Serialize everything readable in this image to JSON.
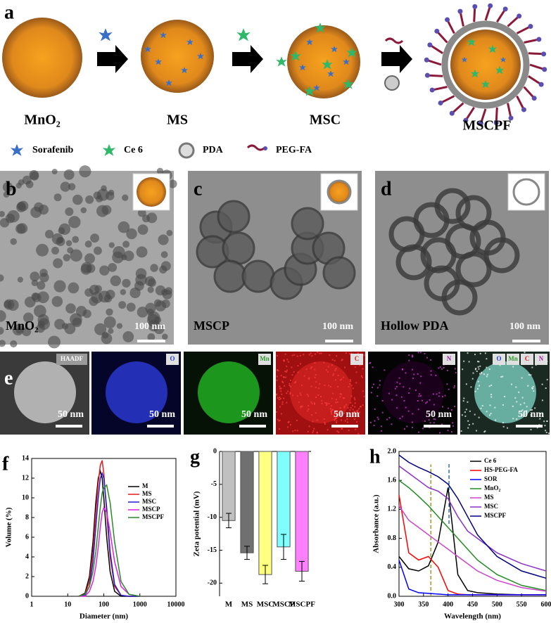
{
  "panels": {
    "a": {
      "label": "a",
      "stages": [
        "MnO₂",
        "MS",
        "MSC",
        "MSCPF"
      ],
      "legend": [
        "Sorafenib",
        "Ce 6",
        "PDA",
        "PEG-FA"
      ]
    },
    "b": {
      "label": "b",
      "sample": "MnO₂",
      "scale": "100 nm"
    },
    "c": {
      "label": "c",
      "sample": "MSCP",
      "scale": "100 nm"
    },
    "d": {
      "label": "d",
      "sample": "Hollow PDA",
      "scale": "100 nm"
    },
    "e": {
      "label": "e",
      "maps": [
        {
          "channel": "HAADF",
          "scale": "50 nm"
        },
        {
          "channel": "O",
          "scale": "50 nm"
        },
        {
          "channel": "Mn",
          "scale": "50 nm"
        },
        {
          "channel": "C",
          "scale": "50 nm"
        },
        {
          "channel": "N",
          "scale": "50 nm"
        }
      ],
      "merged": {
        "channels": [
          "O",
          "Mn",
          "C",
          "N"
        ],
        "scale": "50 nm"
      }
    }
  },
  "chart_data": [
    {
      "panel": "f",
      "type": "line",
      "xscale": "log",
      "xlabel": "Diameter (nm)",
      "ylabel": "Volume (%)",
      "x": [
        20,
        30,
        40,
        50,
        60,
        70,
        80,
        90,
        100,
        120,
        150,
        200,
        300,
        500,
        1000
      ],
      "xlim": [
        1,
        10000
      ],
      "xticks": [
        1,
        10,
        100,
        1000,
        10000
      ],
      "ylim": [
        0,
        14
      ],
      "yticks": [
        0,
        2,
        4,
        6,
        8,
        10,
        12,
        14
      ],
      "legend": "upper right",
      "series": [
        {
          "name": "M",
          "color": "#000000",
          "values": [
            0,
            0.3,
            2,
            5.5,
            9.5,
            12,
            12.7,
            12,
            10,
            6,
            2.5,
            0.5,
            0,
            0,
            0
          ]
        },
        {
          "name": "MS",
          "color": "#e41a1c",
          "values": [
            0,
            0.2,
            1.5,
            4.5,
            8.5,
            11.5,
            13.3,
            13.8,
            12.5,
            8.5,
            4,
            1,
            0.1,
            0,
            0
          ]
        },
        {
          "name": "MSC",
          "color": "#1f1fd0",
          "values": [
            0,
            0.1,
            1,
            3.5,
            7,
            10,
            12,
            12.5,
            12,
            9,
            4.5,
            1.2,
            0.1,
            0,
            0
          ]
        },
        {
          "name": "MSCP",
          "color": "#e020e0",
          "values": [
            0,
            0,
            0.5,
            1.5,
            3,
            5,
            7,
            8.5,
            9,
            8.5,
            6.5,
            3.5,
            1,
            0.2,
            0
          ]
        },
        {
          "name": "MSCPF",
          "color": "#2a8a2a",
          "values": [
            0,
            0.2,
            1,
            2.5,
            4.5,
            7,
            9,
            10.5,
            11,
            11.3,
            9.5,
            5.5,
            1.5,
            0.2,
            0
          ]
        }
      ]
    },
    {
      "panel": "g",
      "type": "bar",
      "ylabel": "Zeta potential (mV)",
      "categories": [
        "M",
        "MS",
        "MSC",
        "MSCP",
        "MSCPF"
      ],
      "values": [
        -10.5,
        -15.4,
        -18.7,
        -14.5,
        -18.2
      ],
      "errors": [
        1.1,
        1.0,
        1.4,
        1.9,
        1.5
      ],
      "colors": [
        "#c0c0c0",
        "#707070",
        "#ffff80",
        "#80ffff",
        "#ff80ff"
      ],
      "ylim": [
        -22,
        0
      ],
      "yticks": [
        0,
        -5,
        -10,
        -15,
        -20
      ]
    },
    {
      "panel": "h",
      "type": "line",
      "xlabel": "Wavelength (nm)",
      "ylabel": "Absorbance (a.u.)",
      "x": [
        300,
        320,
        340,
        360,
        380,
        400,
        420,
        440,
        460,
        500,
        550,
        600
      ],
      "xlim": [
        300,
        600
      ],
      "xticks": [
        300,
        350,
        400,
        450,
        500,
        550,
        600
      ],
      "ylim": [
        0,
        2
      ],
      "yticks": [
        {
          "value": 0,
          "label": "0.0"
        },
        0.4,
        0.8,
        1.2,
        1.6,
        {
          "value": 2,
          "label": "2.0"
        }
      ],
      "legend": "upper right",
      "markers": [
        {
          "x": 365,
          "y": [
            0,
            1.82
          ],
          "color": "#9a9a20"
        },
        {
          "x": 402,
          "y": [
            1.0,
            1.85
          ],
          "color": "#3070d0"
        }
      ],
      "series": [
        {
          "name": "Ce 6",
          "color": "#000000",
          "values": [
            0.55,
            0.38,
            0.35,
            0.42,
            0.75,
            1.5,
            0.3,
            0.08,
            0.05,
            0.03,
            0.02,
            0.02
          ]
        },
        {
          "name": "HS-PEG-FA",
          "color": "#ff0000",
          "values": [
            1.4,
            0.6,
            0.5,
            0.55,
            0.4,
            0.08,
            0.03,
            0.02,
            0.02,
            0.02,
            0.02,
            0.02
          ]
        },
        {
          "name": "SOR",
          "color": "#0000ff",
          "values": [
            0.5,
            0.1,
            0.05,
            0.04,
            0.03,
            0.02,
            0.02,
            0.02,
            0.02,
            0.02,
            0.02,
            0.02
          ]
        },
        {
          "name": "MnO₂",
          "color": "#228b22",
          "values": [
            1.6,
            1.5,
            1.38,
            1.25,
            1.1,
            0.95,
            0.8,
            0.65,
            0.5,
            0.3,
            0.15,
            0.08
          ]
        },
        {
          "name": "MS",
          "color": "#cc44cc",
          "values": [
            1.25,
            1.05,
            0.95,
            0.85,
            0.75,
            0.65,
            0.55,
            0.45,
            0.35,
            0.22,
            0.12,
            0.07
          ]
        },
        {
          "name": "MSC",
          "color": "#8b2fc9",
          "values": [
            1.8,
            1.7,
            1.6,
            1.5,
            1.45,
            1.35,
            1.1,
            0.9,
            0.8,
            0.6,
            0.45,
            0.35
          ]
        },
        {
          "name": "MSCPF",
          "color": "#000080",
          "values": [
            1.95,
            1.85,
            1.78,
            1.72,
            1.65,
            1.55,
            1.35,
            1.1,
            0.85,
            0.55,
            0.35,
            0.25
          ]
        }
      ]
    }
  ]
}
